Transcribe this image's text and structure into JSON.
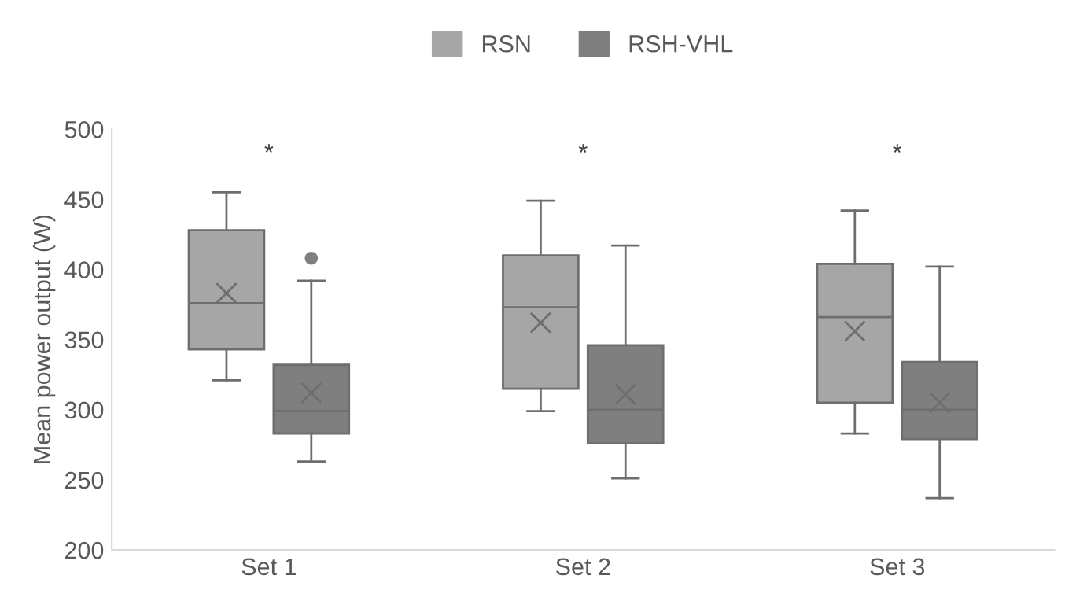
{
  "chart_data": {
    "type": "box",
    "ylabel": "Mean power output (W)",
    "categories": [
      "Set 1",
      "Set 2",
      "Set 3"
    ],
    "series": [
      {
        "name": "RSN",
        "color": "#a6a6a6",
        "boxes": [
          {
            "low": 321,
            "q1": 343,
            "median": 376,
            "q3": 428,
            "high": 455,
            "mean": 383
          },
          {
            "low": 299,
            "q1": 315,
            "median": 373,
            "q3": 410,
            "high": 449,
            "mean": 362
          },
          {
            "low": 283,
            "q1": 305,
            "median": 366,
            "q3": 404,
            "high": 442,
            "mean": 356
          }
        ]
      },
      {
        "name": "RSH-VHL",
        "color": "#7f7f7f",
        "boxes": [
          {
            "low": 263,
            "q1": 283,
            "median": 299,
            "q3": 332,
            "high": 392,
            "mean": 312,
            "outliers": [
              408
            ]
          },
          {
            "low": 251,
            "q1": 276,
            "median": 300,
            "q3": 346,
            "high": 417,
            "mean": 311
          },
          {
            "low": 237,
            "q1": 279,
            "median": 300,
            "q3": 334,
            "high": 402,
            "mean": 305
          }
        ]
      }
    ],
    "annotations": [
      "*",
      "*",
      "*"
    ],
    "ylim": [
      200,
      500
    ],
    "yticks": [
      200,
      250,
      300,
      350,
      400,
      450,
      500
    ],
    "grid": false,
    "legend": "top"
  }
}
